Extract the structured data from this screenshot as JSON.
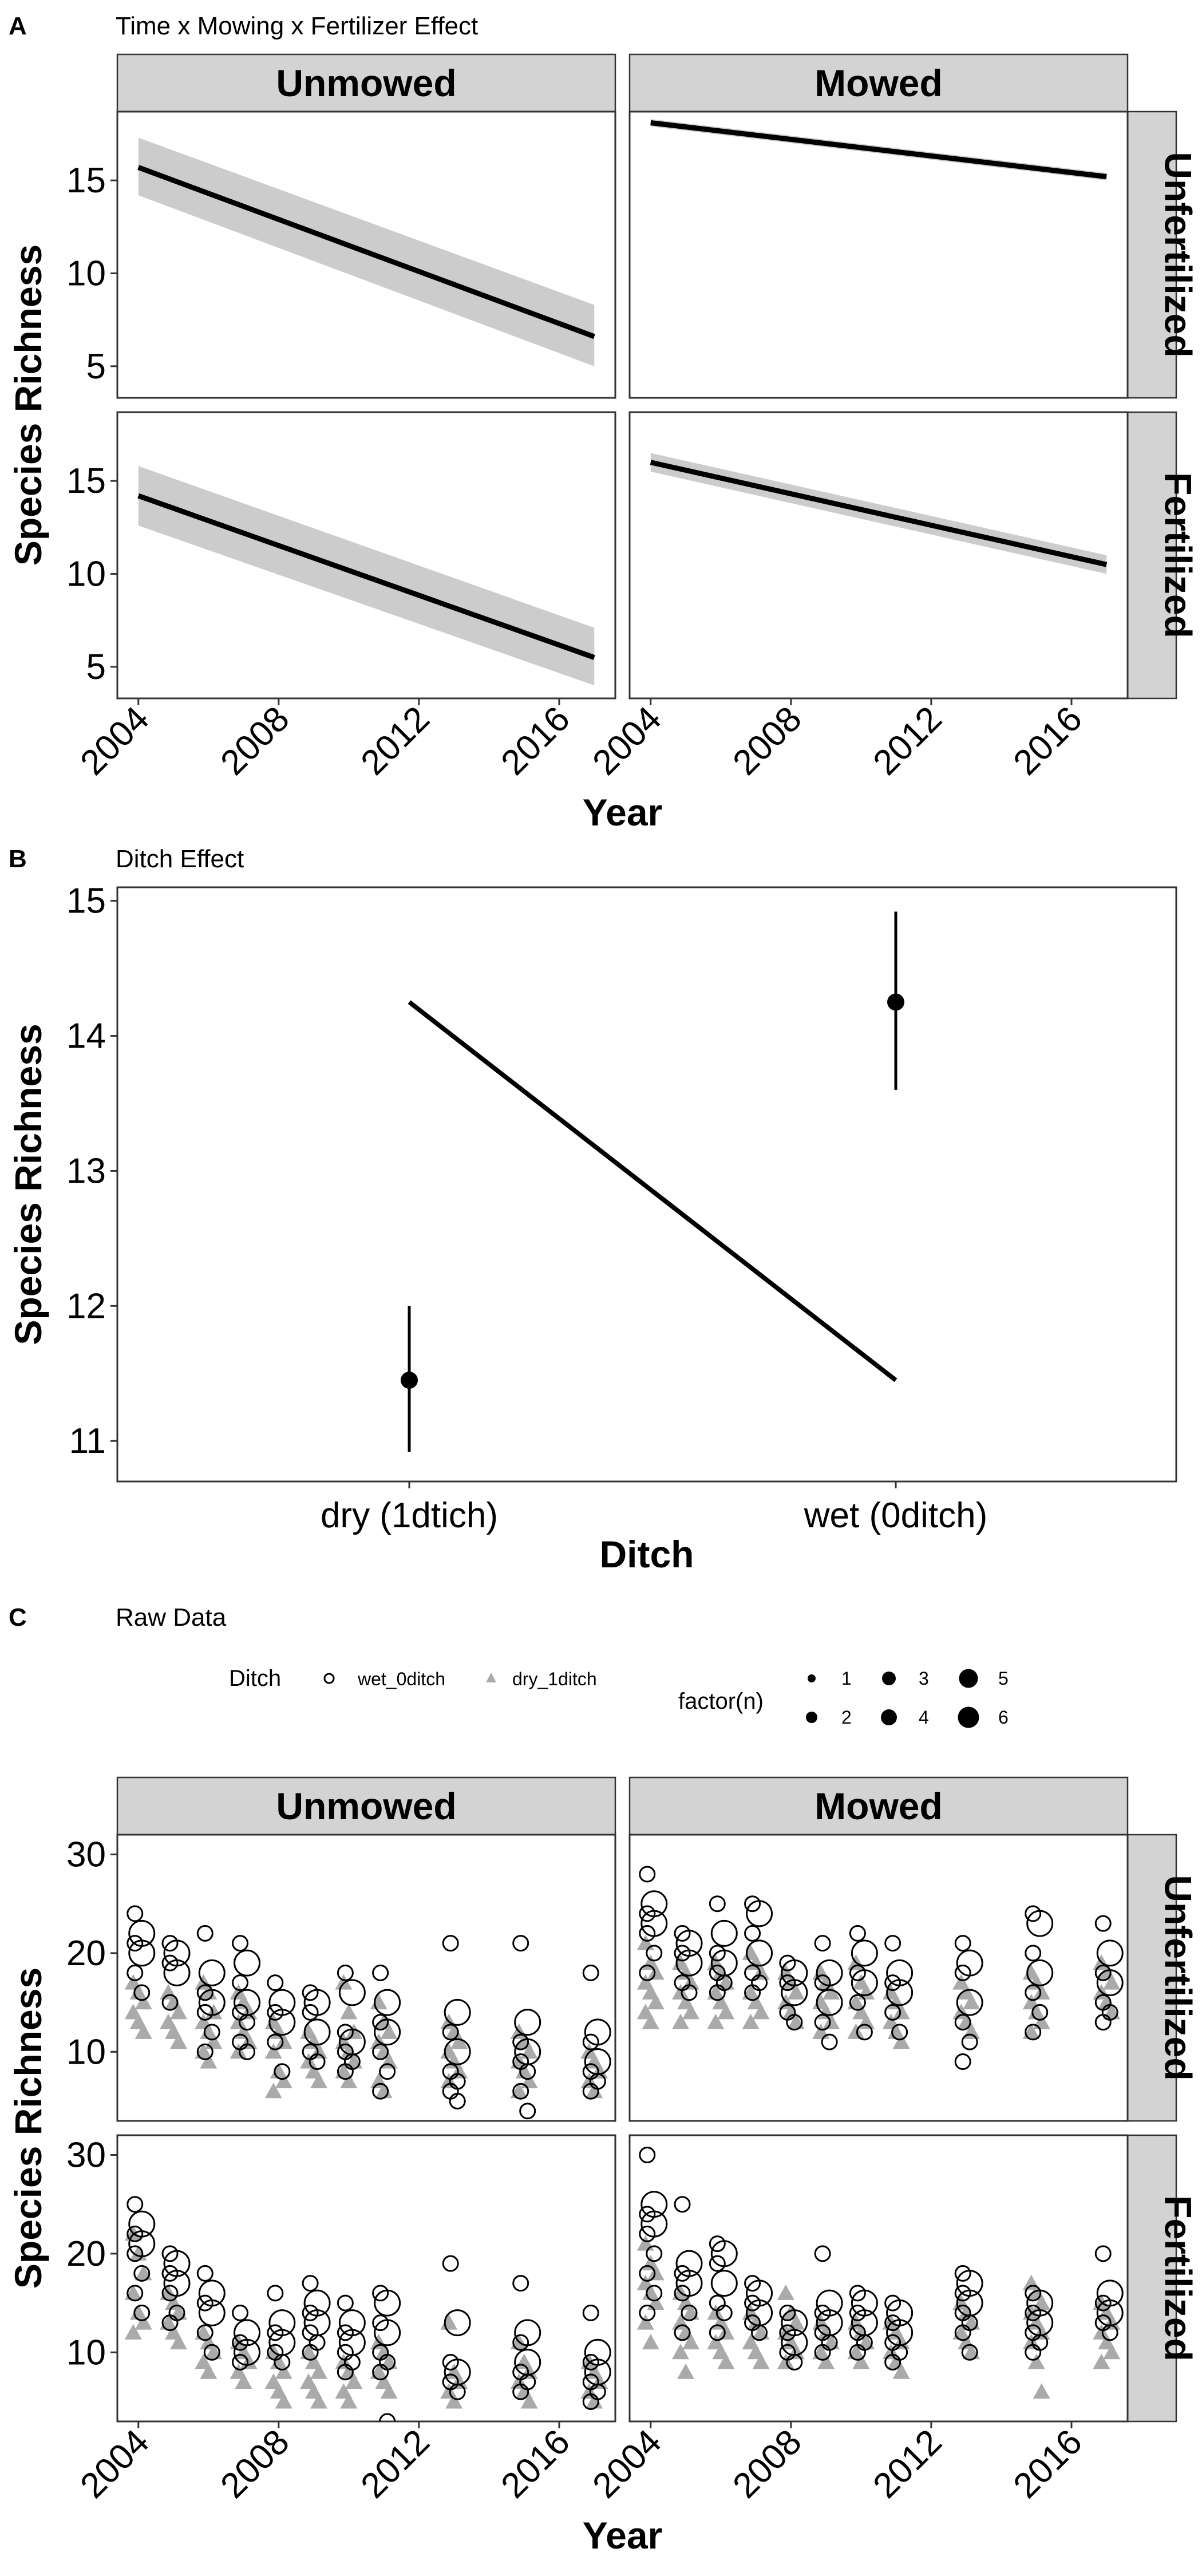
{
  "figure": {
    "panels": [
      {
        "letter": "A",
        "title": "Time x Mowing x Fertilizer Effect"
      },
      {
        "letter": "B",
        "title": "Ditch Effect"
      },
      {
        "letter": "C",
        "title": "Raw Data"
      }
    ]
  },
  "chart_data": [
    {
      "id": "A",
      "type": "line",
      "title": "Time x Mowing x Fertilizer Effect",
      "xlabel": "Year",
      "ylabel": "Species Richness",
      "columns": [
        "Unmowed",
        "Mowed"
      ],
      "rows": [
        "Unfertilized",
        "Fertilized"
      ],
      "x_ticks": [
        2004,
        2008,
        2012,
        2016
      ],
      "y_ticks": [
        5,
        10,
        15
      ],
      "xlim": [
        2003.4,
        2017.6
      ],
      "ylim": [
        3.3,
        18.7
      ],
      "series": [
        {
          "column": "Unmowed",
          "row": "Unfertilized",
          "x": [
            2004,
            2017
          ],
          "y": [
            15.7,
            6.6
          ],
          "ci_lower": [
            14.2,
            5.0
          ],
          "ci_upper": [
            17.3,
            8.3
          ]
        },
        {
          "column": "Mowed",
          "row": "Unfertilized",
          "x": [
            2004,
            2017
          ],
          "y": [
            18.1,
            15.2
          ],
          "ci_lower": [
            17.9,
            15.0
          ],
          "ci_upper": [
            18.3,
            15.4
          ]
        },
        {
          "column": "Unmowed",
          "row": "Fertilized",
          "x": [
            2004,
            2017
          ],
          "y": [
            14.2,
            5.5
          ],
          "ci_lower": [
            12.6,
            4.0
          ],
          "ci_upper": [
            15.8,
            7.1
          ]
        },
        {
          "column": "Mowed",
          "row": "Fertilized",
          "x": [
            2004,
            2017
          ],
          "y": [
            16.0,
            10.5
          ],
          "ci_lower": [
            15.5,
            10.0
          ],
          "ci_upper": [
            16.5,
            11.0
          ]
        }
      ]
    },
    {
      "id": "B",
      "type": "line",
      "title": "Ditch Effect",
      "xlabel": "Ditch",
      "ylabel": "Species Richness",
      "categories": [
        "dry (1dtich)",
        "wet (0ditch)"
      ],
      "y_ticks": [
        11,
        12,
        13,
        14,
        15
      ],
      "ylim": [
        10.7,
        15.1
      ],
      "points": [
        {
          "category": "dry (1dtich)",
          "mean": 11.45,
          "lower": 10.92,
          "upper": 12.0
        },
        {
          "category": "wet (0ditch)",
          "mean": 14.25,
          "lower": 13.6,
          "upper": 14.92
        }
      ],
      "line": {
        "from": 14.25,
        "to": 11.45
      }
    },
    {
      "id": "C",
      "type": "scatter",
      "title": "Raw Data",
      "xlabel": "Year",
      "ylabel": "Species Richness",
      "columns": [
        "Unmowed",
        "Mowed"
      ],
      "rows": [
        "Unfertilized",
        "Fertilized"
      ],
      "x_ticks": [
        2004,
        2008,
        2012,
        2016
      ],
      "y_ticks": [
        10,
        20,
        30
      ],
      "xlim": [
        2003.4,
        2017.6
      ],
      "ylim": [
        3,
        32
      ],
      "legend": {
        "ditch_title": "Ditch",
        "ditch_levels": [
          "wet_0ditch",
          "dry_1ditch"
        ],
        "size_title": "factor(n)",
        "size_levels": [
          "1",
          "2",
          "3",
          "4",
          "5",
          "6"
        ],
        "position": "top"
      },
      "years": [
        2004,
        2005,
        2006,
        2007,
        2008,
        2009,
        2010,
        2011,
        2013,
        2015,
        2017
      ],
      "facets": [
        {
          "column": "Unmowed",
          "row": "Unfertilized",
          "wet_0ditch": [
            [
              24,
              22,
              21,
              20,
              18,
              16
            ],
            [
              21,
              20,
              19,
              18,
              15
            ],
            [
              22,
              18,
              16,
              15,
              14,
              12,
              10
            ],
            [
              21,
              19,
              17,
              15,
              14,
              13,
              11,
              10
            ],
            [
              17,
              15,
              14,
              13,
              11,
              8
            ],
            [
              16,
              15,
              14,
              12,
              10,
              9
            ],
            [
              18,
              16,
              12,
              11,
              10,
              9,
              8
            ],
            [
              18,
              15,
              13,
              12,
              10,
              8,
              6
            ],
            [
              21,
              14,
              12,
              10,
              8,
              7,
              6,
              5
            ],
            [
              21,
              13,
              11,
              10,
              9,
              8,
              6,
              4
            ],
            [
              18,
              12,
              11,
              9,
              8,
              7,
              6
            ]
          ],
          "dry_1ditch": [
            [
              17,
              16,
              15,
              14,
              13,
              12
            ],
            [
              16,
              15,
              14,
              13,
              12,
              11
            ],
            [
              17,
              16,
              14,
              13,
              12,
              11,
              10,
              9
            ],
            [
              16,
              15,
              14,
              13,
              12,
              11,
              10
            ],
            [
              13,
              12,
              11,
              10,
              8,
              7,
              6
            ],
            [
              12,
              11,
              10,
              9,
              8,
              7
            ],
            [
              17,
              14,
              12,
              11,
              10,
              9,
              8,
              7
            ],
            [
              15,
              13,
              12,
              11,
              10,
              9,
              7,
              6
            ],
            [
              13,
              12,
              11,
              10,
              9,
              8,
              7
            ],
            [
              12,
              11,
              10,
              9,
              8,
              7,
              6
            ],
            [
              10,
              9,
              8,
              7,
              6
            ]
          ]
        },
        {
          "column": "Mowed",
          "row": "Unfertilized",
          "wet_0ditch": [
            [
              28,
              25,
              24,
              23,
              22,
              20,
              18
            ],
            [
              22,
              21,
              20,
              19,
              17,
              16
            ],
            [
              25,
              22,
              20,
              19,
              18,
              17,
              16
            ],
            [
              25,
              24,
              22,
              20,
              18,
              17,
              16
            ],
            [
              19,
              18,
              17,
              16,
              14,
              13
            ],
            [
              21,
              18,
              17,
              15,
              13,
              11
            ],
            [
              22,
              20,
              18,
              17,
              15,
              12
            ],
            [
              21,
              18,
              17,
              16,
              14,
              12
            ],
            [
              21,
              19,
              18,
              15,
              13,
              11,
              9
            ],
            [
              24,
              23,
              20,
              18,
              16,
              14,
              12
            ],
            [
              23,
              20,
              18,
              17,
              15,
              14,
              13
            ]
          ],
          "dry_1ditch": [
            [
              21,
              19,
              18,
              17,
              16,
              15,
              14,
              13
            ],
            [
              19,
              18,
              17,
              16,
              15,
              14,
              13
            ],
            [
              19,
              18,
              17,
              16,
              15,
              14,
              13
            ],
            [
              20,
              19,
              18,
              16,
              15,
              14,
              13
            ],
            [
              18,
              17,
              16,
              15,
              14,
              13
            ],
            [
              18,
              17,
              16,
              15,
              14,
              13,
              12
            ],
            [
              19,
              17,
              16,
              15,
              14,
              13,
              12
            ],
            [
              16,
              15,
              14,
              13,
              12,
              11
            ],
            [
              17,
              16,
              15,
              14,
              13,
              12
            ],
            [
              18,
              17,
              16,
              15,
              14,
              13,
              12
            ],
            [
              19,
              18,
              17,
              16,
              15,
              14
            ]
          ]
        },
        {
          "column": "Unmowed",
          "row": "Fertilized",
          "wet_0ditch": [
            [
              25,
              23,
              22,
              21,
              20,
              18,
              16,
              14
            ],
            [
              20,
              19,
              18,
              17,
              16,
              14,
              13
            ],
            [
              18,
              16,
              15,
              14,
              12,
              10
            ],
            [
              14,
              12,
              11,
              10,
              9
            ],
            [
              16,
              13,
              12,
              11,
              10,
              9
            ],
            [
              17,
              15,
              14,
              13,
              12,
              11,
              10
            ],
            [
              15,
              13,
              12,
              11,
              10,
              9,
              8
            ],
            [
              16,
              15,
              13,
              12,
              10,
              9,
              8,
              3
            ],
            [
              19,
              13,
              9,
              8,
              7,
              6
            ],
            [
              17,
              12,
              11,
              9,
              8,
              7,
              6
            ],
            [
              14,
              10,
              9,
              8,
              7,
              6,
              5
            ]
          ],
          "dry_1ditch": [
            [
              22,
              20,
              18,
              16,
              14,
              13,
              12
            ],
            [
              16,
              15,
              14,
              13,
              12,
              11
            ],
            [
              12,
              11,
              10,
              9,
              8
            ],
            [
              11,
              10,
              9,
              8,
              7
            ],
            [
              10,
              9,
              8,
              7,
              6,
              5
            ],
            [
              10,
              9,
              8,
              7,
              6,
              5
            ],
            [
              9,
              8,
              7,
              6,
              5
            ],
            [
              11,
              10,
              9,
              8,
              7,
              6
            ],
            [
              13,
              8,
              7,
              6,
              5
            ],
            [
              11,
              9,
              8,
              7,
              6,
              5
            ],
            [
              9,
              8,
              7,
              6,
              5
            ]
          ]
        },
        {
          "column": "Mowed",
          "row": "Fertilized",
          "wet_0ditch": [
            [
              30,
              25,
              24,
              23,
              22,
              20,
              18,
              16,
              14
            ],
            [
              25,
              19,
              18,
              17,
              16,
              14,
              12
            ],
            [
              21,
              20,
              19,
              17,
              15,
              14,
              12
            ],
            [
              17,
              16,
              15,
              14,
              13,
              12
            ],
            [
              14,
              13,
              12,
              11,
              10,
              9
            ],
            [
              20,
              15,
              14,
              13,
              12,
              11,
              10
            ],
            [
              16,
              15,
              14,
              13,
              12,
              11,
              10
            ],
            [
              15,
              14,
              13,
              12,
              11,
              10,
              9
            ],
            [
              18,
              17,
              16,
              15,
              14,
              13,
              12,
              10
            ],
            [
              16,
              15,
              14,
              13,
              12,
              11,
              10
            ],
            [
              20,
              16,
              15,
              14,
              13,
              12
            ]
          ],
          "dry_1ditch": [
            [
              21,
              19,
              18,
              17,
              16,
              15,
              13,
              11
            ],
            [
              16,
              15,
              14,
              13,
              12,
              11,
              10,
              8
            ],
            [
              14,
              13,
              12,
              11,
              10,
              9
            ],
            [
              14,
              13,
              12,
              11,
              10,
              9
            ],
            [
              16,
              14,
              13,
              12,
              11,
              10,
              9
            ],
            [
              13,
              12,
              11,
              10,
              9
            ],
            [
              13,
              12,
              11,
              10,
              9
            ],
            [
              13,
              12,
              11,
              10,
              9,
              8
            ],
            [
              15,
              14,
              13,
              12,
              11,
              10
            ],
            [
              17,
              16,
              15,
              14,
              13,
              12,
              11,
              9,
              6
            ],
            [
              15,
              14,
              13,
              12,
              11,
              10,
              9
            ]
          ]
        }
      ]
    }
  ],
  "colors": {
    "strip_fill": "#d3d3d3",
    "ci_ribbon": "#cccccc",
    "dry_points": "#aaaaaa",
    "line": "#000000"
  }
}
